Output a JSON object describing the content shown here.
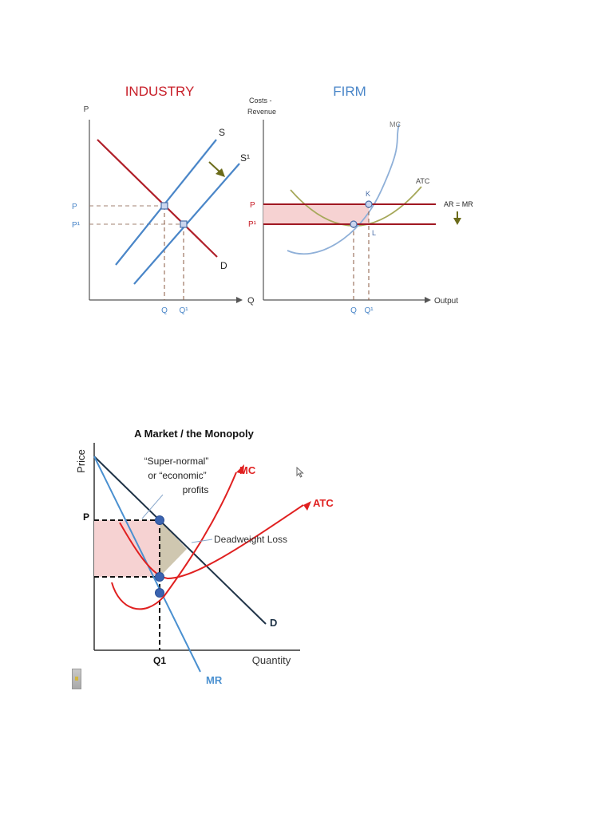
{
  "colors": {
    "industry_title": "#c8202a",
    "firm_title": "#4a86c8",
    "supply": "#4a86c8",
    "demand_industry": "#b0202a",
    "ar_mr": "#a01822",
    "mc_firm": "#8fb0d8",
    "atc_firm": "#a6a85a",
    "profit_fill": "#f6d2d2",
    "point_fill": "#cbd6ef",
    "arrow": "#6b6b1a",
    "mono_mc": "#e02020",
    "mono_mr": "#4a90d0",
    "mono_d": "#1f3347",
    "mono_point": "#3a63b0",
    "dwl_fill": "#cfc7b0",
    "axis": "#444444"
  },
  "chart_data": [
    {
      "type": "line",
      "title": "INDUSTRY",
      "ylabel": "P",
      "xlabel": "Q",
      "y_ticks": [
        "P",
        "P¹"
      ],
      "x_ticks": [
        "Q",
        "Q¹"
      ],
      "series": [
        {
          "name": "S"
        },
        {
          "name": "S¹"
        },
        {
          "name": "D"
        }
      ],
      "annotations": [
        "supply shifts right (arrow)"
      ]
    },
    {
      "type": "line",
      "title": "FIRM",
      "ylabel": "Costs - Revenue",
      "xlabel": "Output",
      "y_ticks": [
        "P",
        "P¹"
      ],
      "x_ticks": [
        "Q",
        "Q¹"
      ],
      "series": [
        {
          "name": "MC"
        },
        {
          "name": "ATC"
        },
        {
          "name": "AR = MR"
        }
      ],
      "points": [
        "K",
        "L"
      ],
      "annotations": [
        "AR = MR shifts down (arrow)",
        "shaded supernormal profit area between P and P¹"
      ]
    },
    {
      "type": "line",
      "title": "A Market / the Monopoly",
      "ylabel": "Price",
      "xlabel": "Quantity",
      "y_ticks": [
        "P"
      ],
      "x_ticks": [
        "Q1"
      ],
      "series": [
        {
          "name": "MC"
        },
        {
          "name": "ATC"
        },
        {
          "name": "D"
        },
        {
          "name": "MR"
        }
      ],
      "annotations": [
        "“Super-normal”",
        "or “economic”",
        "profits",
        "Deadweight Loss"
      ]
    }
  ]
}
